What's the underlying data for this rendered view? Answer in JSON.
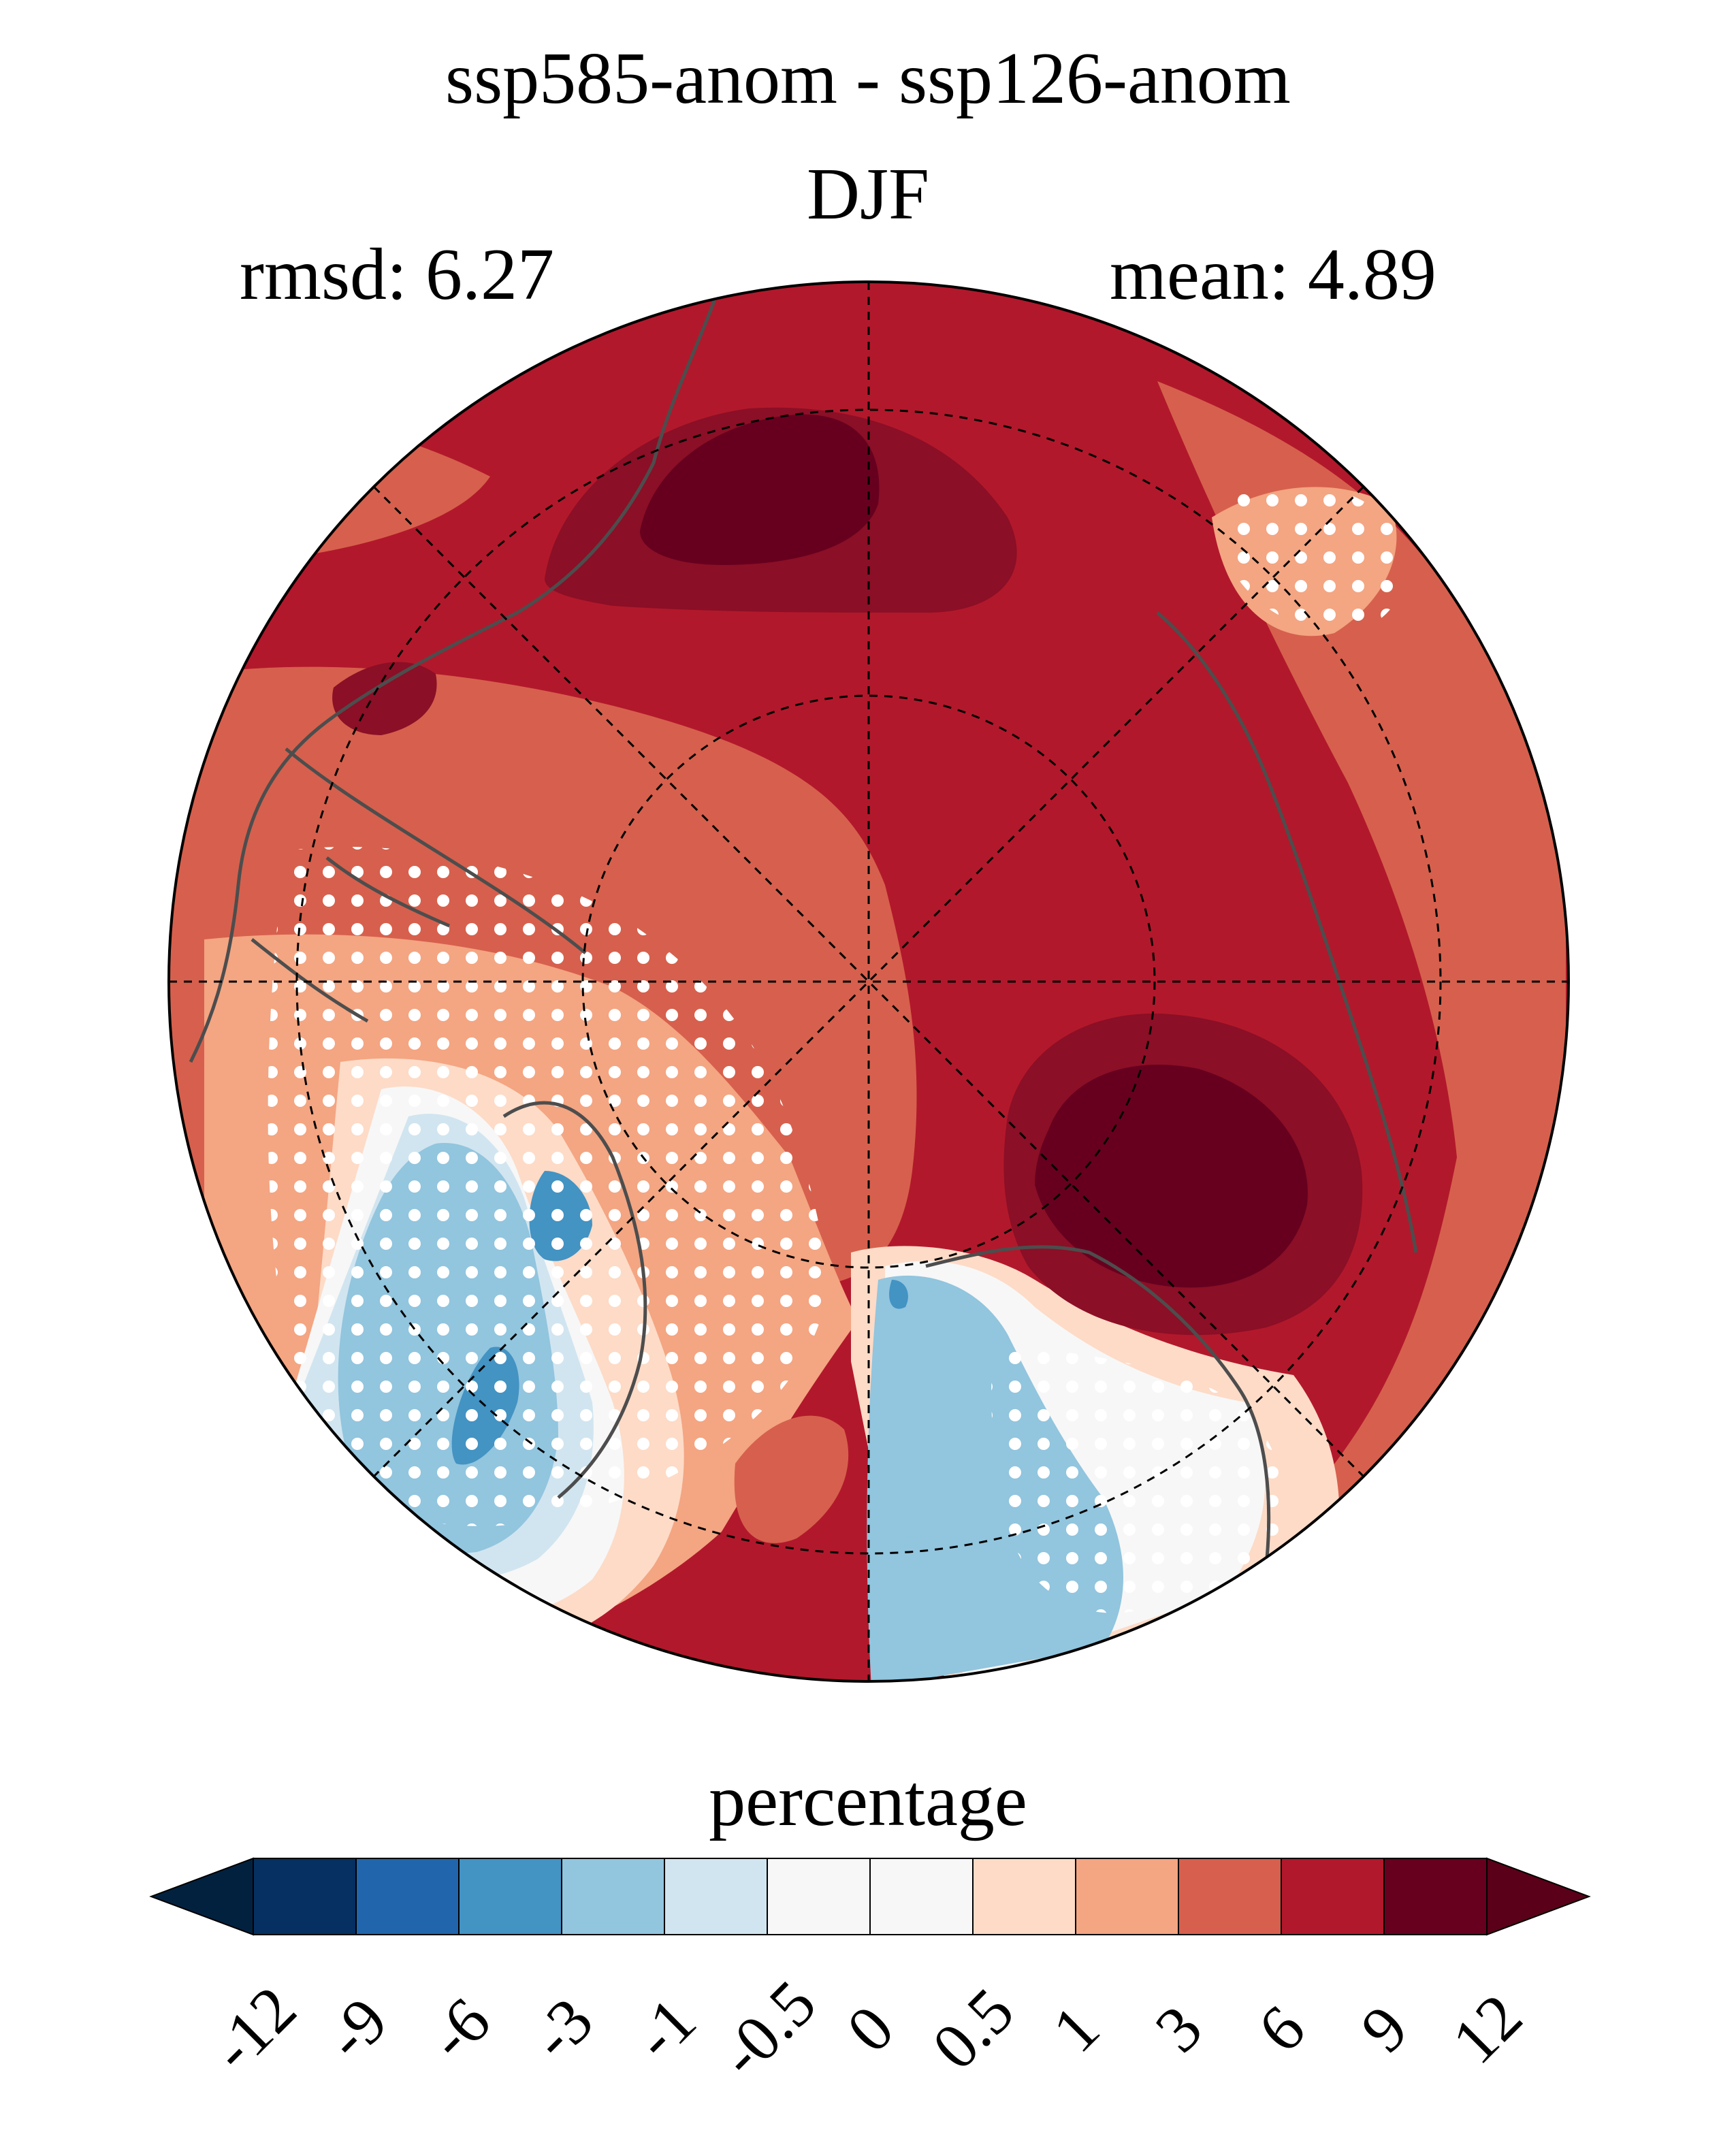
{
  "title": "ssp585-anom - ssp126-anom",
  "season": "DJF",
  "stats": {
    "rmsd": "rmsd: 6.27",
    "mean": "mean: 4.89"
  },
  "colorbar": {
    "label": "percentage",
    "ticks": [
      "-12",
      "-9",
      "-6",
      "-3",
      "-1",
      "-0.5",
      "0",
      "0.5",
      "1",
      "3",
      "6",
      "9",
      "12"
    ],
    "colors": [
      "#053061",
      "#2166ac",
      "#4393c3",
      "#92c5de",
      "#d1e5f0",
      "#f7f7f7",
      "#f7f7f7",
      "#fddbc7",
      "#f4a582",
      "#d6604d",
      "#b2182b",
      "#67001f"
    ],
    "under_color": "#02213f",
    "over_color": "#5a0018"
  },
  "map": {
    "projection": "north polar stereographic",
    "fill_colors": {
      "base": "#b2182b",
      "moderate": "#d6604d",
      "light": "#f4a582",
      "pale": "#fddbc7",
      "neutral": "#f7f7f7",
      "faint_blue": "#d1e5f0",
      "blue": "#92c5de",
      "mid_blue": "#4393c3",
      "strong": "#8b0f26",
      "extreme": "#67001f"
    },
    "coastline_color": "#4d4d4d",
    "stipple_color": "#ffffff"
  }
}
